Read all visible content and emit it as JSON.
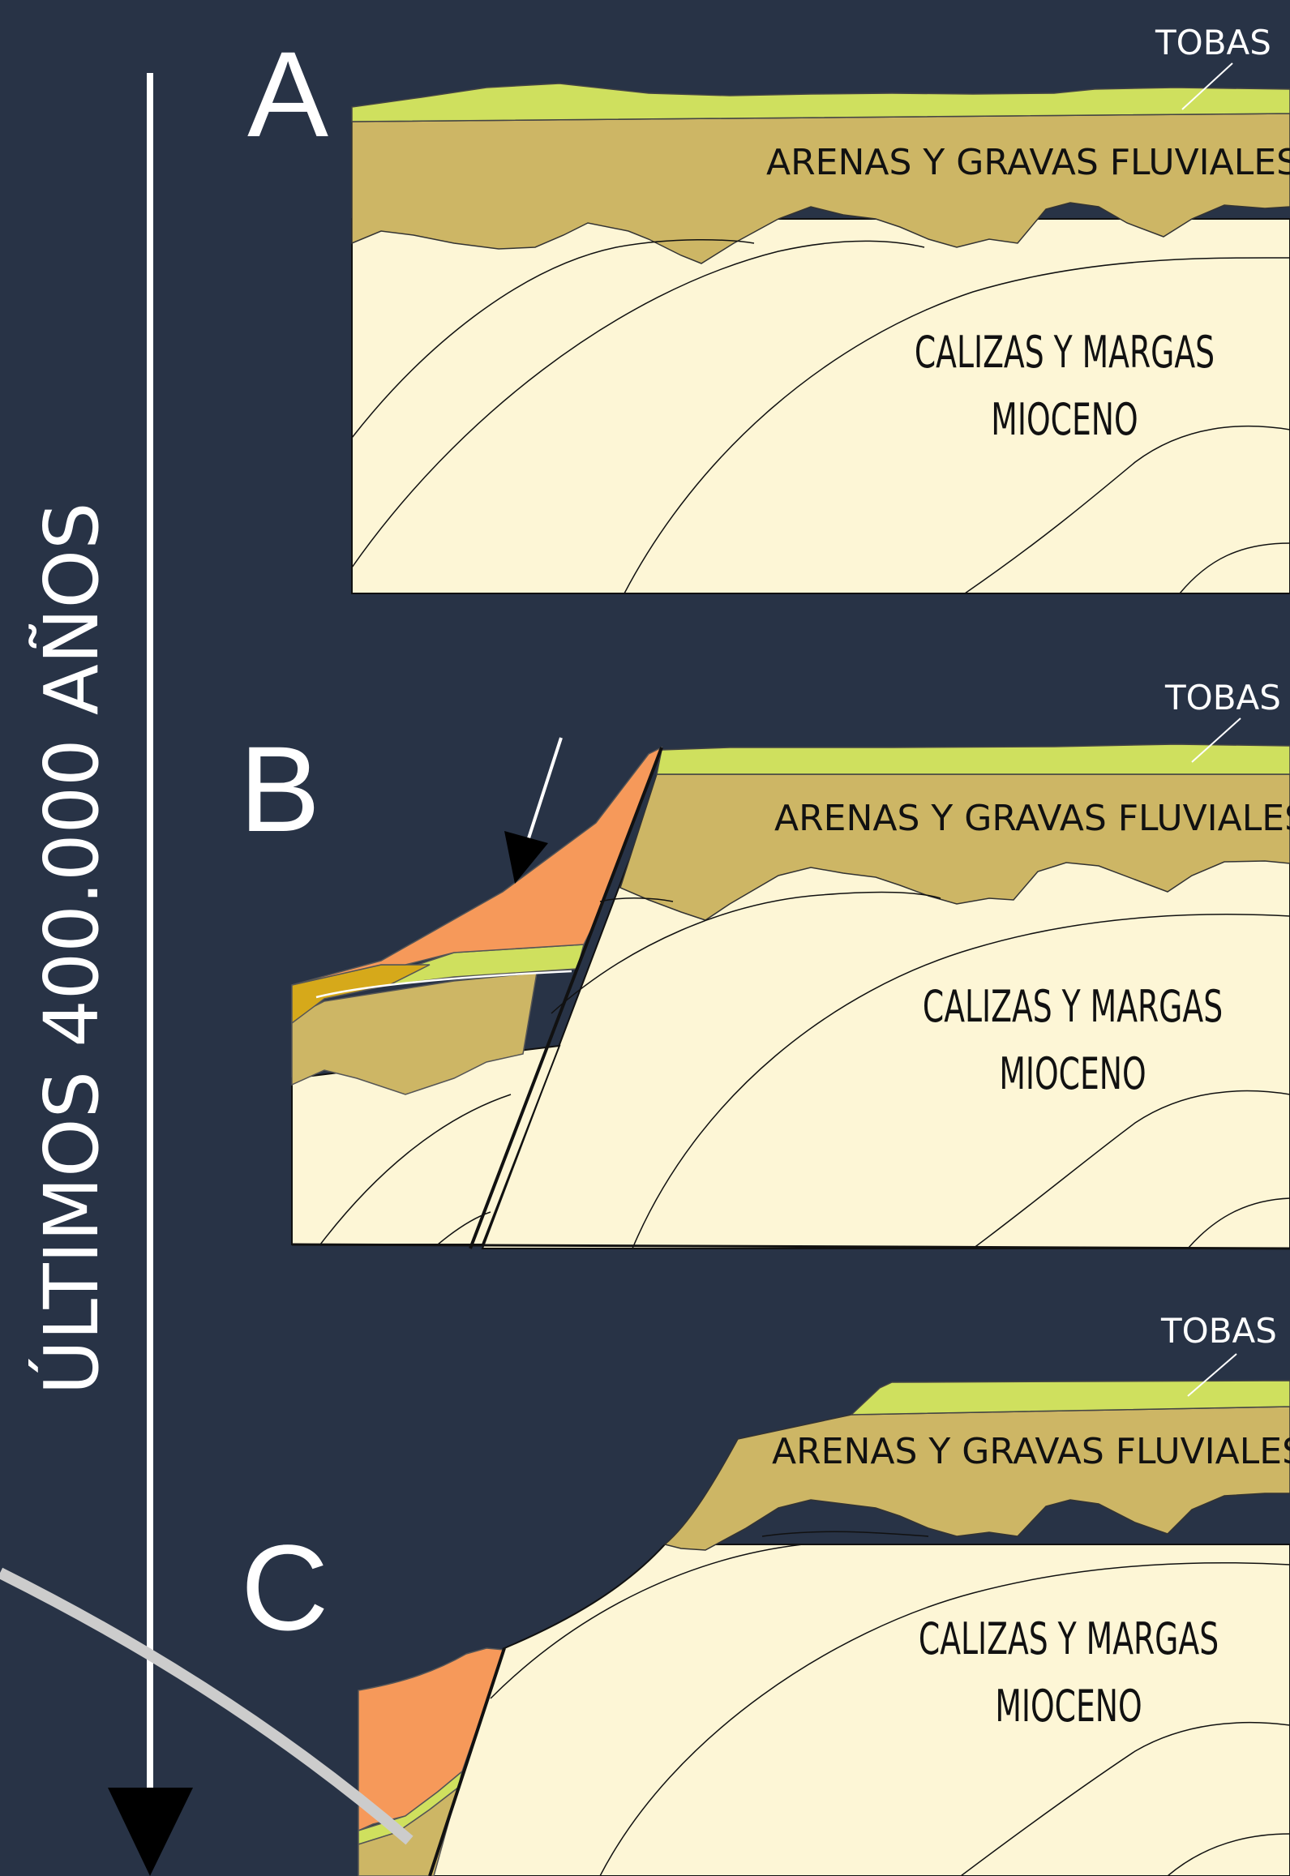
{
  "timeline": {
    "label": "ÚLTIMOS 400.000 AÑOS"
  },
  "panels": [
    {
      "letter": "A",
      "tobas": "TOBAS",
      "fluvial": "ARENAS Y GRAVAS FLUVIALES",
      "calizas": "CALIZAS Y MARGAS",
      "mioceno": "MIOCENO"
    },
    {
      "letter": "B",
      "tobas": "TOBAS",
      "fluvial": "ARENAS Y GRAVAS FLUVIALES",
      "calizas": "CALIZAS Y MARGAS",
      "mioceno": "MIOCENO"
    },
    {
      "letter": "C",
      "tobas": "TOBAS",
      "fluvial": "ARENAS Y GRAVAS FLUVIALES",
      "calizas": "CALIZAS Y MARGAS",
      "mioceno": "MIOCENO"
    }
  ],
  "colors": {
    "background": "#283346",
    "tobas": "#cfe05e",
    "fluvial": "#cdb665",
    "miocene": "#fdf6d6",
    "landslide": "#f6995a",
    "ochre": "#d6a91a",
    "gray_curve": "#cccccc"
  }
}
